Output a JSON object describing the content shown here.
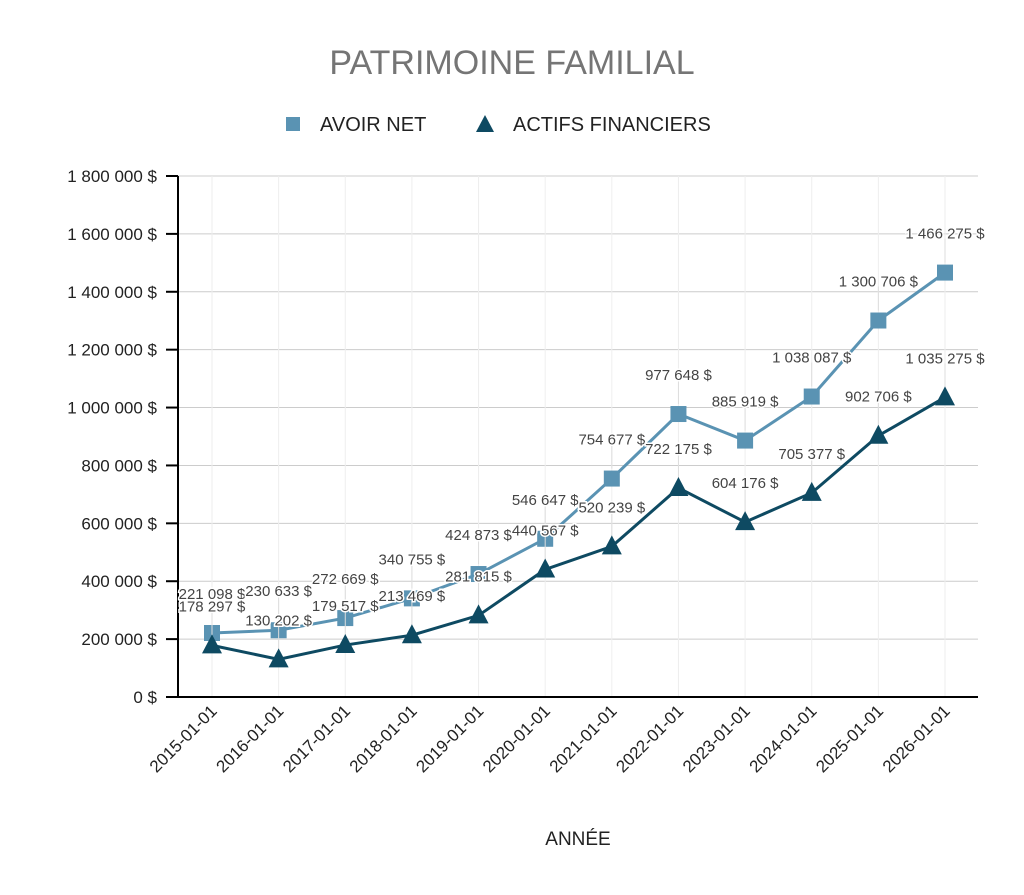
{
  "chart_data": {
    "type": "line",
    "title": "PATRIMOINE FAMILIAL",
    "xlabel": "ANNÉE",
    "ylabel": "",
    "categories": [
      "2015-01-01",
      "2016-01-01",
      "2017-01-01",
      "2018-01-01",
      "2019-01-01",
      "2020-01-01",
      "2021-01-01",
      "2022-01-01",
      "2023-01-01",
      "2024-01-01",
      "2025-01-01",
      "2026-01-01"
    ],
    "ylim": [
      0,
      1800000
    ],
    "yticks": [
      "0 $",
      "200 000 $",
      "400 000 $",
      "600 000 $",
      "800 000 $",
      "1 000 000 $",
      "1 200 000 $",
      "1 400 000 $",
      "1 600 000 $",
      "1 800 000 $"
    ],
    "grid": true,
    "legend": "top",
    "series": [
      {
        "name": "AVOIR NET",
        "color": "#5a93b3",
        "marker": "square",
        "values": [
          221098,
          230633,
          272669,
          340755,
          424873,
          546647,
          754677,
          977648,
          885919,
          1038087,
          1300706,
          1466275
        ],
        "labels": [
          "221 098 $",
          "230 633 $",
          "272 669 $",
          "340 755 $",
          "424 873 $",
          "546 647 $",
          "754 677 $",
          "977 648 $",
          "885 919 $",
          "1 038 087 $",
          "1 300 706 $",
          "1 466 275 $"
        ]
      },
      {
        "name": "ACTIFS FINANCIERS",
        "color": "#0e4a62",
        "marker": "triangle",
        "values": [
          178297,
          130202,
          179517,
          213469,
          281815,
          440567,
          520239,
          722175,
          604176,
          705377,
          902706,
          1035275
        ],
        "labels": [
          "178 297 $",
          "130 202 $",
          "179 517 $",
          "213 469 $",
          "281 815 $",
          "440 567 $",
          "520 239 $",
          "722 175 $",
          "604 176 $",
          "705 377 $",
          "902 706 $",
          "1 035 275 $"
        ]
      }
    ]
  }
}
